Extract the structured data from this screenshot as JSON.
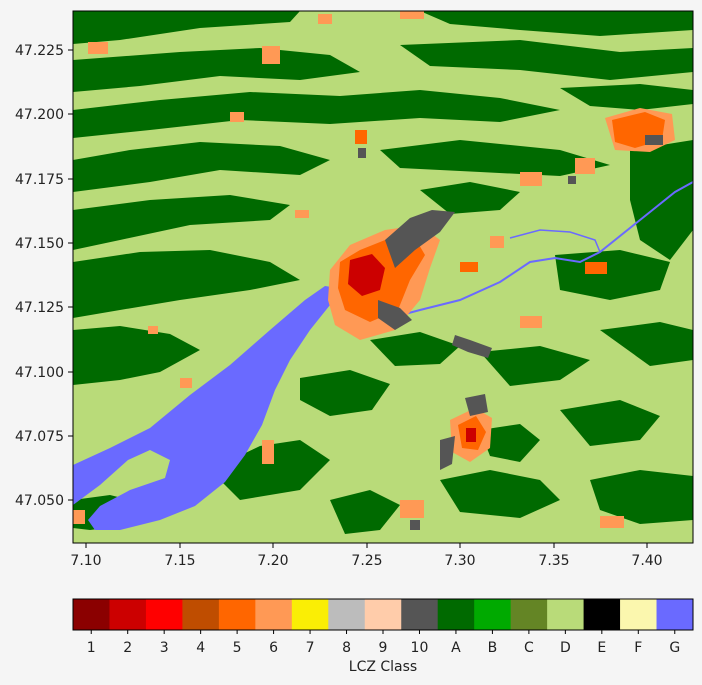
{
  "figure": {
    "type": "map",
    "background": "#f5f5f5"
  },
  "map": {
    "x_ticks": [
      "7.10",
      "7.15",
      "7.20",
      "7.25",
      "7.30",
      "7.35",
      "7.40"
    ],
    "y_ticks": [
      "47.225",
      "47.200",
      "47.175",
      "47.150",
      "47.125",
      "47.100",
      "47.075",
      "47.050"
    ],
    "x_range": [
      7.093,
      7.424
    ],
    "y_range": [
      47.033,
      47.24
    ]
  },
  "colorbar": {
    "label": "LCZ Class",
    "classes": [
      {
        "label": "1",
        "color": "#8b0000"
      },
      {
        "label": "2",
        "color": "#cc0000"
      },
      {
        "label": "3",
        "color": "#ff0000"
      },
      {
        "label": "4",
        "color": "#bf4d00"
      },
      {
        "label": "5",
        "color": "#ff6600"
      },
      {
        "label": "6",
        "color": "#ff9955"
      },
      {
        "label": "7",
        "color": "#faee05"
      },
      {
        "label": "8",
        "color": "#bcbcbc"
      },
      {
        "label": "9",
        "color": "#ffccaa"
      },
      {
        "label": "10",
        "color": "#555555"
      },
      {
        "label": "A",
        "color": "#006a00"
      },
      {
        "label": "B",
        "color": "#00aa00"
      },
      {
        "label": "C",
        "color": "#648525"
      },
      {
        "label": "D",
        "color": "#b9db79"
      },
      {
        "label": "E",
        "color": "#000000"
      },
      {
        "label": "F",
        "color": "#fbf7ae"
      },
      {
        "label": "G",
        "color": "#6a6aff"
      }
    ]
  }
}
